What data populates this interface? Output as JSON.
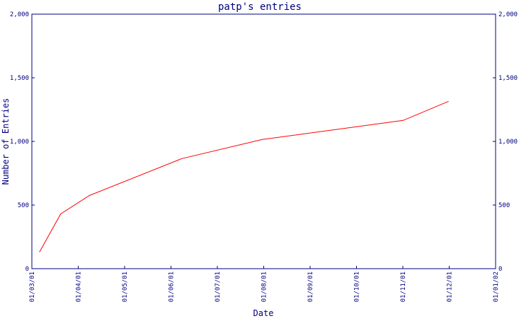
{
  "chart_data": {
    "type": "line",
    "title": "patp's entries",
    "xlabel": "Date",
    "ylabel": "Number of Entries",
    "x_tick_labels": [
      "01/03/01",
      "01/04/01",
      "01/05/01",
      "01/06/01",
      "01/07/01",
      "01/08/01",
      "01/09/01",
      "01/10/01",
      "01/11/01",
      "01/12/01",
      "01/01/02"
    ],
    "y_ticks": [
      0,
      500,
      1000,
      1500,
      2000
    ],
    "y_tick_labels": [
      "0",
      "500",
      "1,000",
      "1,500",
      "2,000"
    ],
    "ylim": [
      0,
      2000
    ],
    "xlim": [
      "2001-03-01",
      "2002-01-01"
    ],
    "grid": false,
    "series": [
      {
        "color": "#ff0000",
        "x": [
          "2001-03-06",
          "2001-03-20",
          "2001-04-08",
          "2001-06-08",
          "2001-07-31",
          "2001-11-01",
          "2001-12-01"
        ],
        "values": [
          130,
          430,
          575,
          865,
          1015,
          1165,
          1315
        ]
      }
    ]
  },
  "colors": {
    "axis": "#000080",
    "text": "#000080",
    "line": "#ff0000",
    "background": "#ffffff"
  }
}
